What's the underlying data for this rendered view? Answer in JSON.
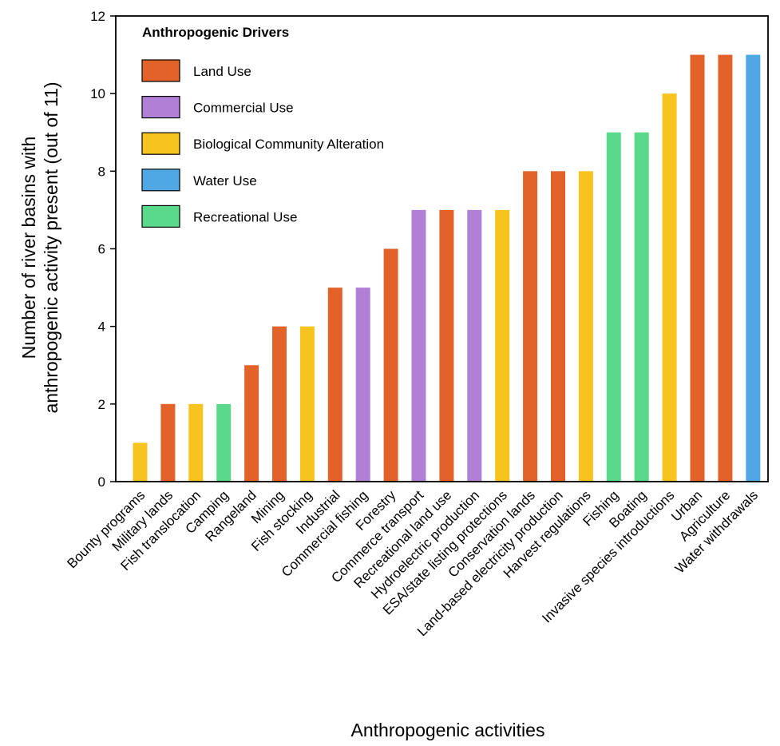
{
  "chart_data": {
    "type": "bar",
    "categories": [
      "Bounty programs",
      "Military lands",
      "Fish translocation",
      "Camping",
      "Rangeland",
      "Mining",
      "Fish stocking",
      "Industrial",
      "Commercial fishing",
      "Forestry",
      "Commerce transport",
      "Recreational land use",
      "Hydroelectric production",
      "ESA/state listing protections",
      "Conservation lands",
      "Land-based electricity production",
      "Harvest regulations",
      "Fishing",
      "Boating",
      "Invasive species introductions",
      "Urban",
      "Agriculture",
      "Water withdrawals"
    ],
    "values": [
      1,
      2,
      2,
      2,
      3,
      4,
      4,
      5,
      5,
      6,
      7,
      7,
      7,
      7,
      8,
      8,
      8,
      9,
      9,
      10,
      11,
      11,
      11
    ],
    "drivers": [
      "Biological Community Alteration",
      "Land Use",
      "Biological Community Alteration",
      "Recreational Use",
      "Land Use",
      "Land Use",
      "Biological Community Alteration",
      "Land Use",
      "Commercial Use",
      "Land Use",
      "Commercial Use",
      "Land Use",
      "Commercial Use",
      "Biological Community Alteration",
      "Land Use",
      "Land Use",
      "Biological Community Alteration",
      "Recreational Use",
      "Recreational Use",
      "Biological Community Alteration",
      "Land Use",
      "Land Use",
      "Water Use"
    ],
    "title": "",
    "xlabel": "Anthropogenic activities",
    "ylabel_line1": "Number of river basins with",
    "ylabel_line2": "anthropogenic activity present (out of 11)",
    "ylim": [
      0,
      12
    ],
    "yticks": [
      0,
      2,
      4,
      6,
      8,
      10,
      12
    ],
    "grid": false,
    "legend": {
      "title": "Anthropogenic Drivers",
      "placement": "top-left",
      "entries": [
        {
          "name": "Land Use",
          "color": "#E2622A"
        },
        {
          "name": "Commercial Use",
          "color": "#B07FD6"
        },
        {
          "name": "Biological Community Alteration",
          "color": "#F6C31F"
        },
        {
          "name": "Water Use",
          "color": "#4FA7E4"
        },
        {
          "name": "Recreational Use",
          "color": "#5BD98A"
        }
      ]
    }
  }
}
